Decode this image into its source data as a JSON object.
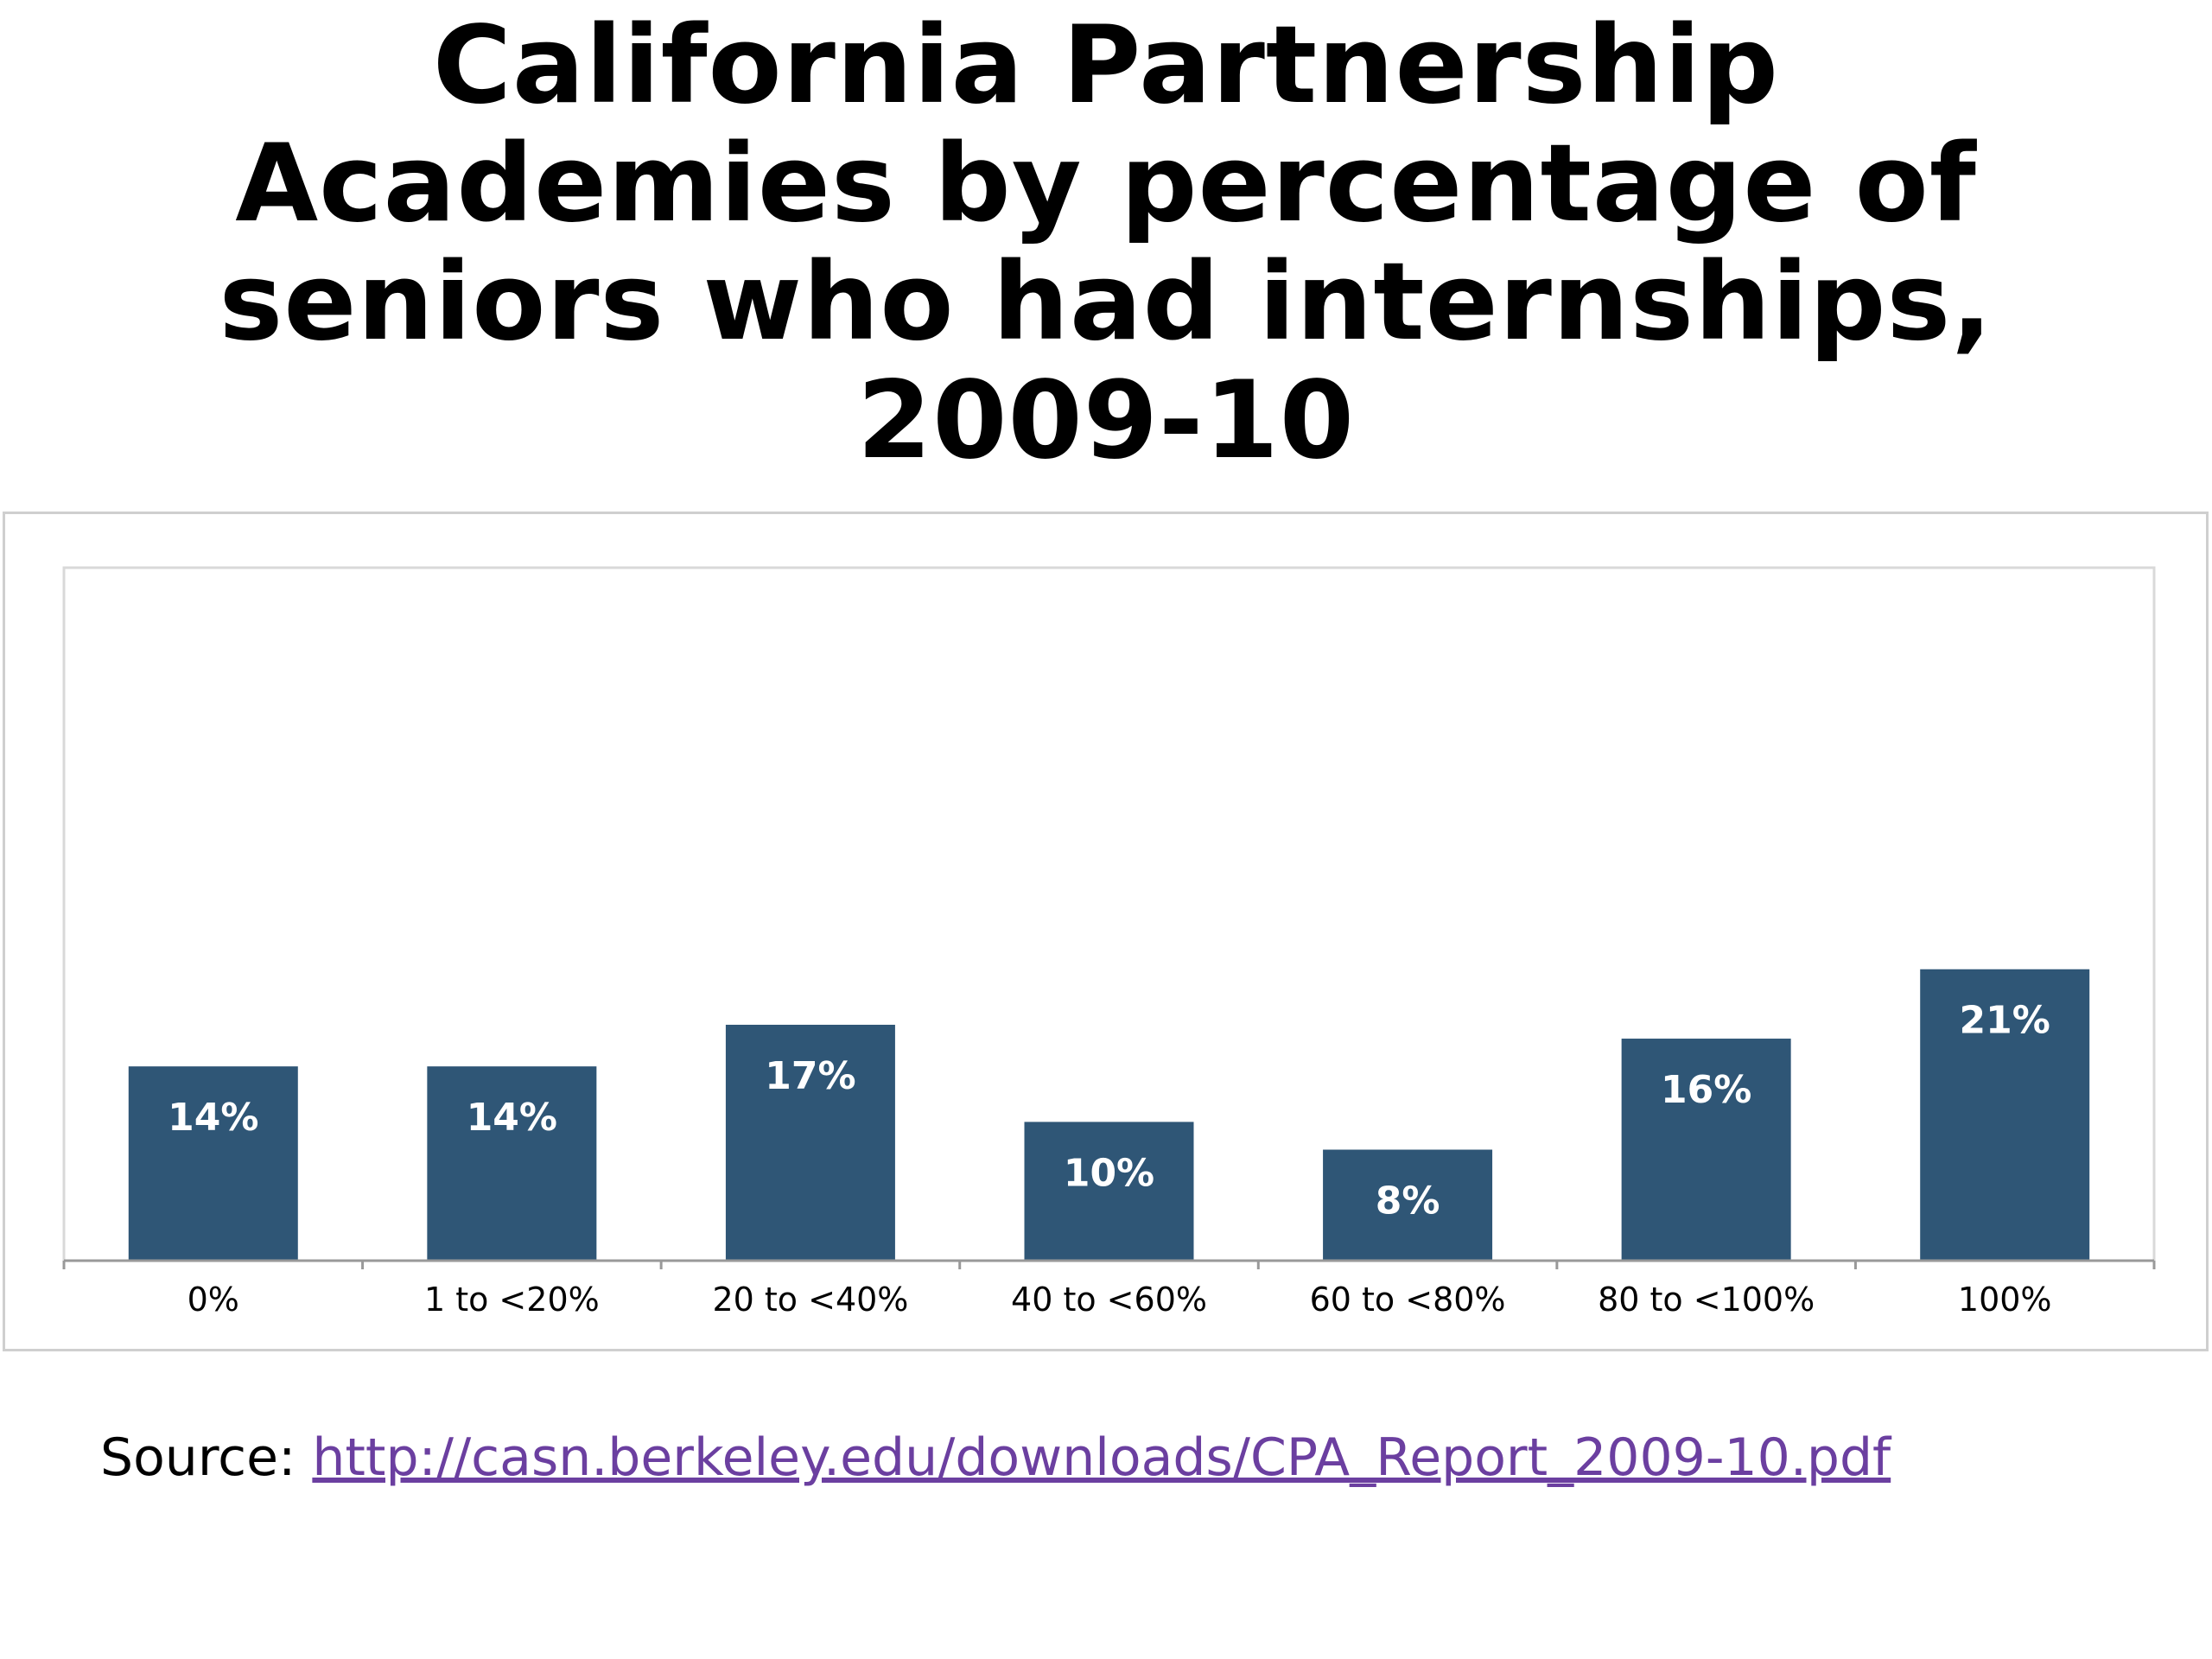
{
  "title_lines": [
    "California Partnership",
    "Academies by percentage of",
    "seniors who had internships,",
    "2009-10"
  ],
  "source": {
    "label": "Source: ",
    "link_text": "http://casn.berkeley.edu/downloads/CPA_Report_2009-10.pdf"
  },
  "colors": {
    "bar": "#2f5676",
    "axis": "#999999",
    "plot_border": "#d9d9d9",
    "link": "#6b3fa0"
  },
  "chart_data": {
    "type": "bar",
    "title": "California Partnership Academies by percentage of seniors who had internships, 2009-10",
    "categories": [
      "0%",
      "1 to <20%",
      "20 to <40%",
      "40 to <60%",
      "60 to <80%",
      "80 to <100%",
      "100%"
    ],
    "values": [
      14,
      14,
      17,
      10,
      8,
      16,
      21
    ],
    "value_labels": [
      "14%",
      "14%",
      "17%",
      "10%",
      "8%",
      "16%",
      "21%"
    ],
    "xlabel": "",
    "ylabel": "",
    "ylim": [
      0,
      50
    ],
    "grid": false,
    "legend": "none"
  }
}
